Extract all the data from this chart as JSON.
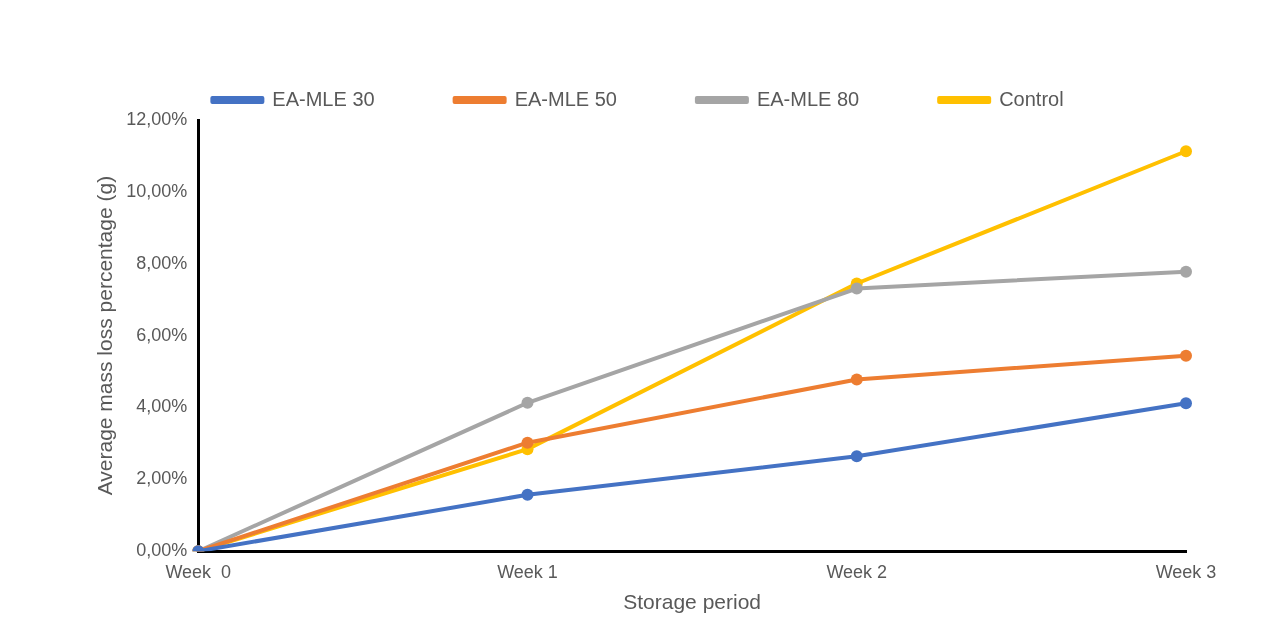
{
  "chart_data": {
    "type": "line",
    "xlabel": "Storage period",
    "ylabel": "Average mass loss percentage (g)",
    "categories": [
      "Week  0",
      "Week 1",
      "Week 2",
      "Week 3"
    ],
    "series": [
      {
        "name": "EA-MLE 30",
        "color": "#4472c4",
        "values": [
          0,
          1.57,
          2.64,
          4.12
        ]
      },
      {
        "name": "EA-MLE 50",
        "color": "#ed7d31",
        "values": [
          0,
          3.02,
          4.78,
          5.44
        ]
      },
      {
        "name": "EA-MLE 80",
        "color": "#a5a5a5",
        "values": [
          0,
          4.13,
          7.31,
          7.78
        ]
      },
      {
        "name": "Control",
        "color": "#ffc000",
        "values": [
          0,
          2.84,
          7.45,
          11.13
        ]
      }
    ],
    "ylim": [
      0,
      12
    ],
    "yticks": [
      {
        "value": 0,
        "label": "0,00%"
      },
      {
        "value": 2,
        "label": "2,00%"
      },
      {
        "value": 4,
        "label": "4,00%"
      },
      {
        "value": 6,
        "label": "6,00%"
      },
      {
        "value": 8,
        "label": "8,00%"
      },
      {
        "value": 10,
        "label": "10,00%"
      },
      {
        "value": 12,
        "label": "12,00%"
      }
    ],
    "grid": false,
    "legend": "top",
    "marker": "circle",
    "line_style": "solid"
  }
}
